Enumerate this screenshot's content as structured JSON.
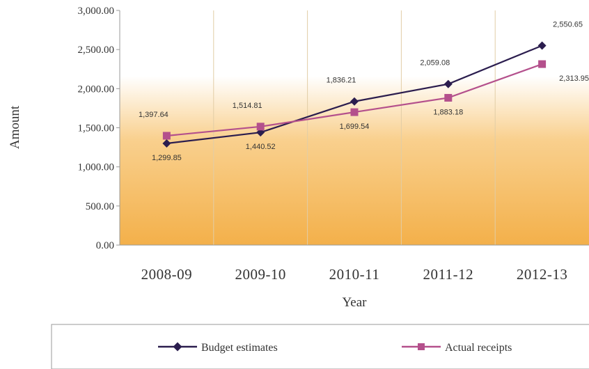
{
  "chart_data": {
    "type": "line",
    "title": "",
    "xlabel": "Year",
    "ylabel": "Amount",
    "categories": [
      "2008-09",
      "2009-10",
      "2010-11",
      "2011-12",
      "2012-13"
    ],
    "ylim": [
      0,
      3000
    ],
    "yticks": [
      "0.00",
      "500.00",
      "1,000.00",
      "1,500.00",
      "2,000.00",
      "2,500.00",
      "3,000.00"
    ],
    "grid": "vertical",
    "legend_position": "bottom",
    "series": [
      {
        "name": "Budget estimates",
        "marker": "diamond",
        "color": "#2b1d4e",
        "values": [
          1299.85,
          1440.52,
          1836.21,
          2059.08,
          2550.65
        ],
        "labels": [
          "1,299.85",
          "1,440.52",
          "1,836.21",
          "2,059.08",
          "2,550.65"
        ]
      },
      {
        "name": "Actual receipts",
        "marker": "square",
        "color": "#b4508c",
        "values": [
          1397.64,
          1514.81,
          1699.54,
          1883.18,
          2313.95
        ],
        "labels": [
          "1,397.64",
          "1,514.81",
          "1,699.54",
          "1,883.18",
          "2,313.95"
        ]
      }
    ],
    "background_gradient": [
      "#ffffff",
      "#f9c879",
      "#f3b04a"
    ]
  }
}
